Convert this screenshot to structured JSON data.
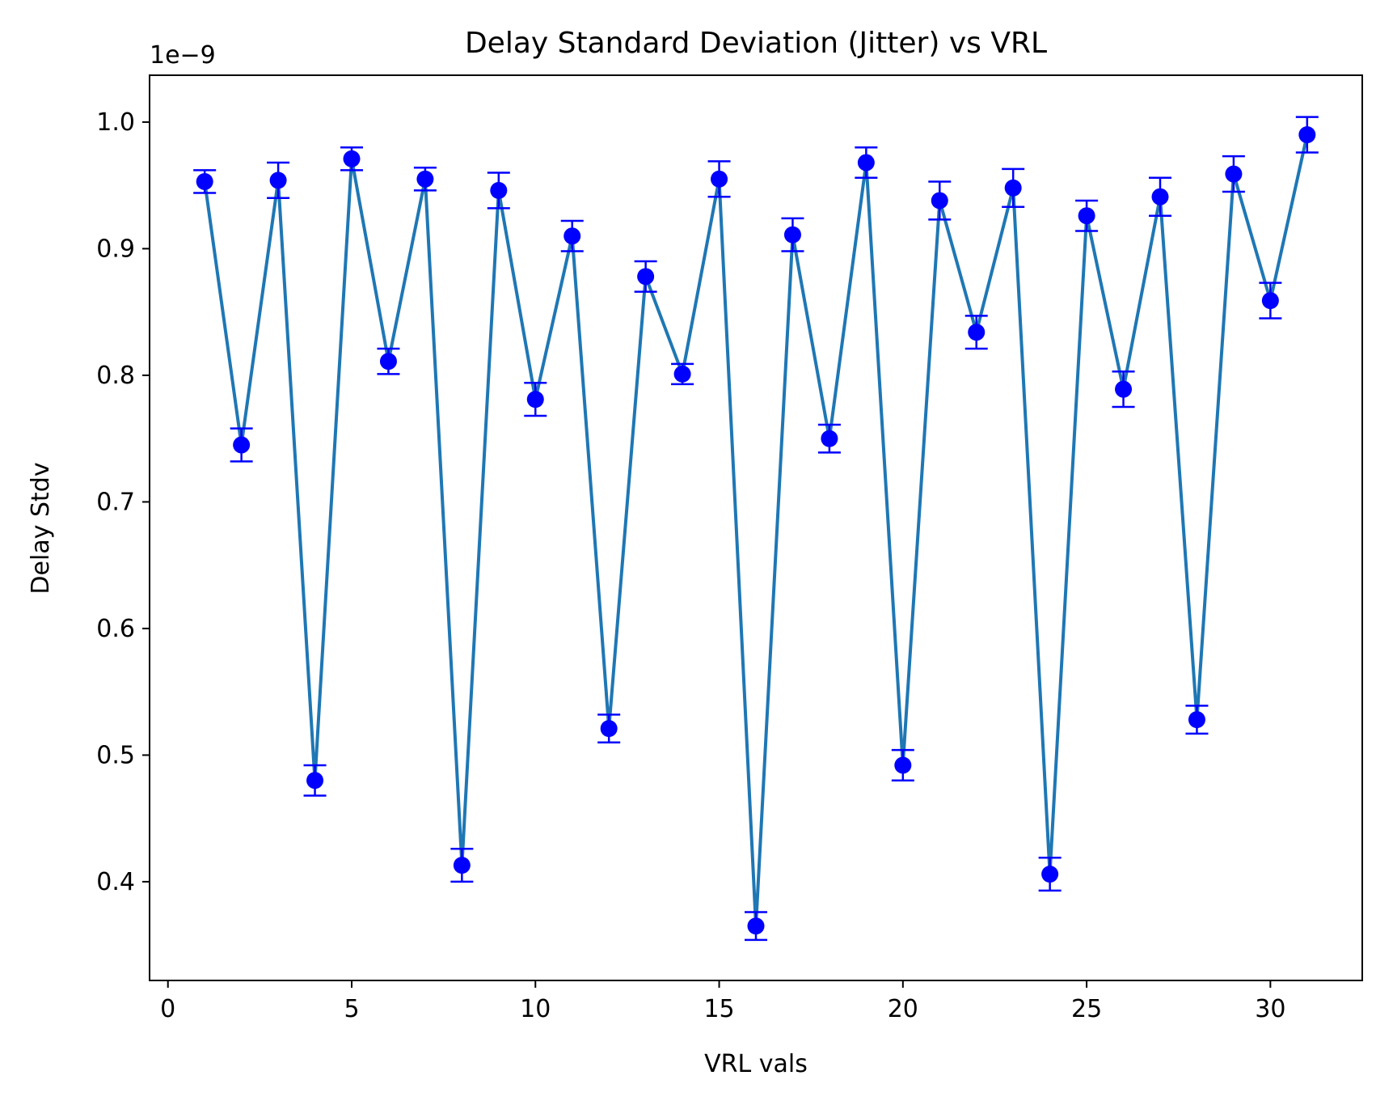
{
  "chart_data": {
    "type": "line",
    "title": "Delay Standard Deviation (Jitter) vs VRL",
    "xlabel": "VRL vals",
    "ylabel": "Delay Stdv",
    "offset_text": "1e−9",
    "xlim": [
      -0.5,
      32.5
    ],
    "ylim": [
      0.322,
      1.037
    ],
    "xticks": [
      0,
      5,
      10,
      15,
      20,
      25,
      30
    ],
    "xtick_labels": [
      "0",
      "5",
      "10",
      "15",
      "20",
      "25",
      "30"
    ],
    "yticks": [
      0.4,
      0.5,
      0.6,
      0.7,
      0.8,
      0.9,
      1.0
    ],
    "ytick_labels": [
      "0.4",
      "0.5",
      "0.6",
      "0.7",
      "0.8",
      "0.9",
      "1.0"
    ],
    "grid": false,
    "colors": {
      "line": "#1f77b4",
      "marker": "#0000ff"
    },
    "series": [
      {
        "x": [
          1,
          2,
          3,
          4,
          5,
          6,
          7,
          8,
          9,
          10,
          11,
          12,
          13,
          14,
          15,
          16,
          17,
          18,
          19,
          20,
          21,
          22,
          23,
          24,
          25,
          26,
          27,
          28,
          29,
          30,
          31
        ],
        "values": [
          0.953,
          0.745,
          0.954,
          0.48,
          0.971,
          0.811,
          0.955,
          0.413,
          0.946,
          0.781,
          0.91,
          0.521,
          0.878,
          0.801,
          0.955,
          0.365,
          0.911,
          0.75,
          0.968,
          0.492,
          0.938,
          0.834,
          0.948,
          0.406,
          0.926,
          0.789,
          0.941,
          0.528,
          0.959,
          0.859,
          0.99
        ],
        "errors": [
          0.009,
          0.013,
          0.014,
          0.012,
          0.009,
          0.01,
          0.009,
          0.013,
          0.014,
          0.013,
          0.012,
          0.011,
          0.012,
          0.008,
          0.014,
          0.011,
          0.013,
          0.011,
          0.012,
          0.012,
          0.015,
          0.013,
          0.015,
          0.013,
          0.012,
          0.014,
          0.015,
          0.011,
          0.014,
          0.014,
          0.014
        ]
      }
    ]
  }
}
